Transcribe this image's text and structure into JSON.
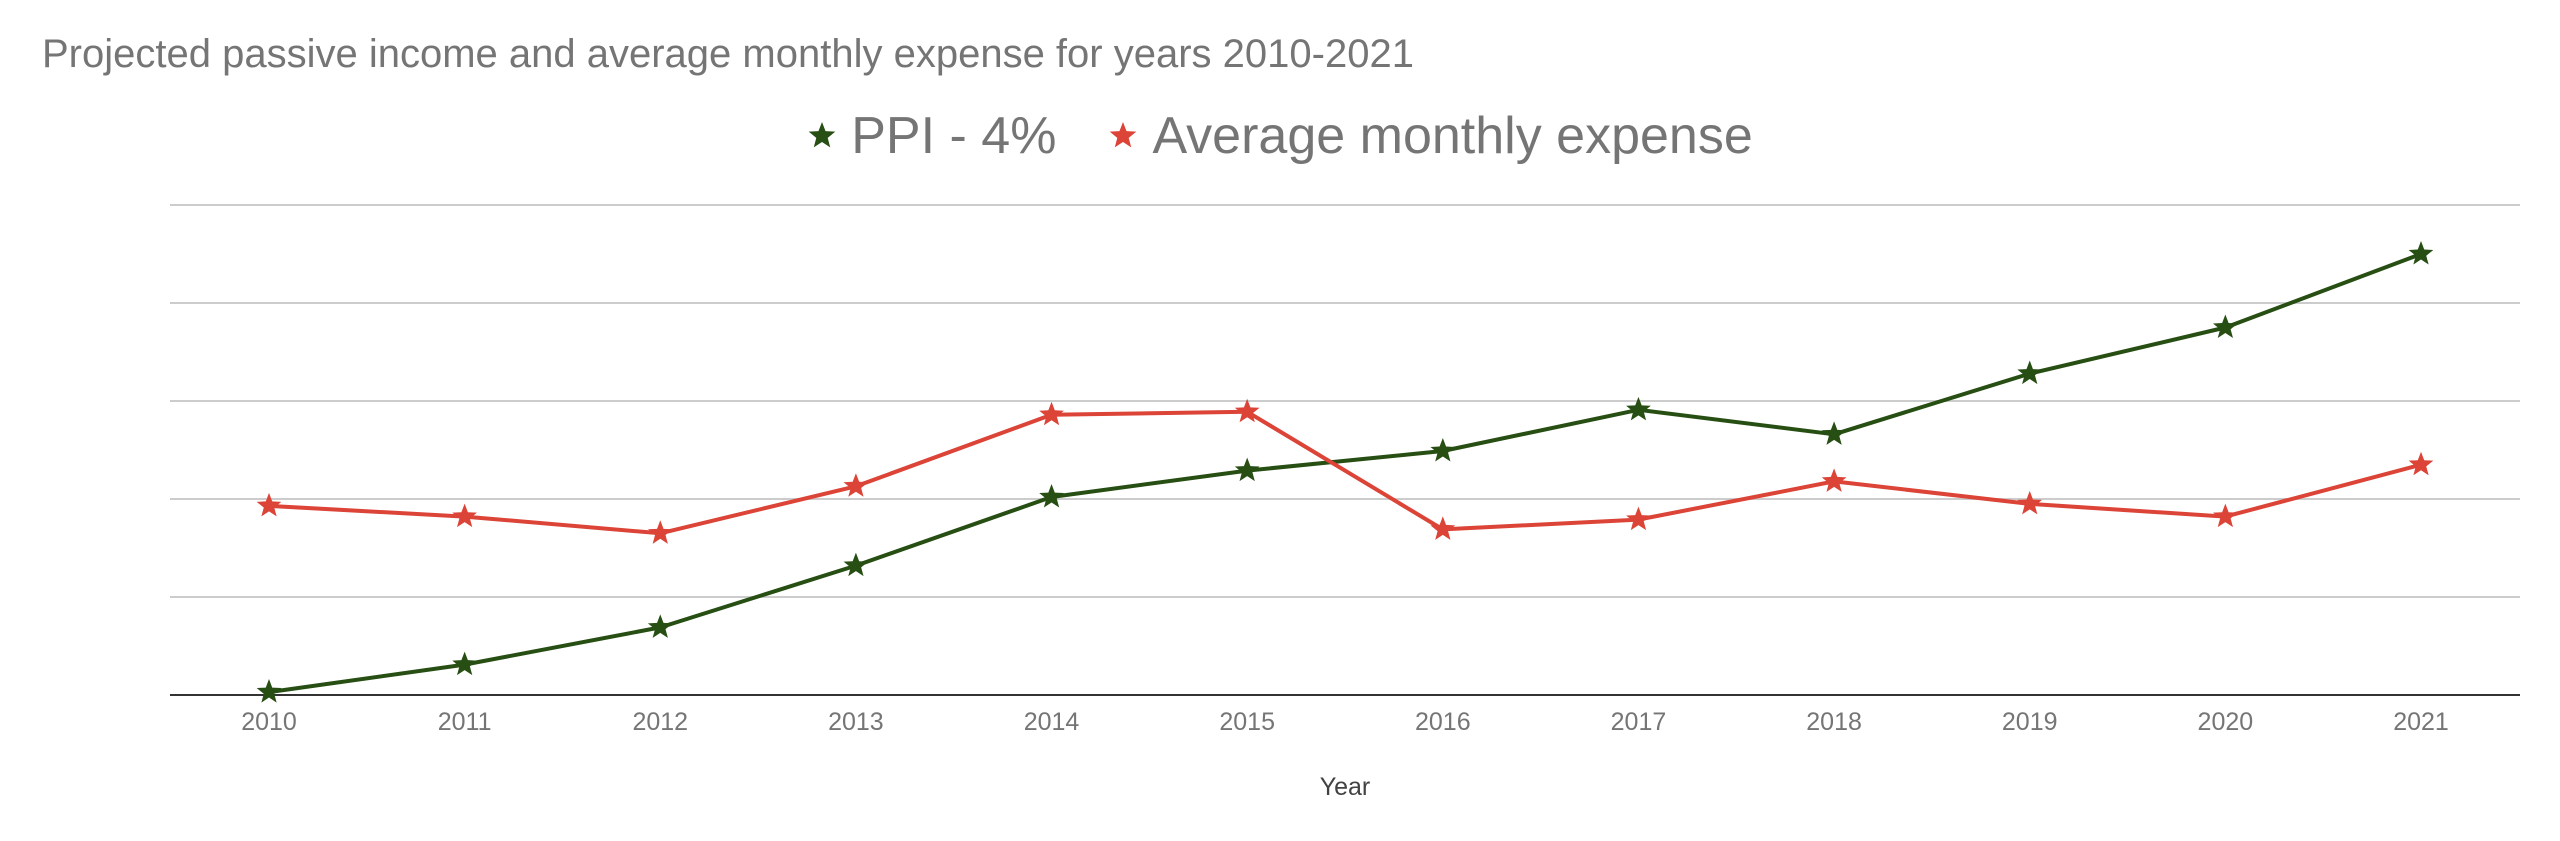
{
  "chart_data": {
    "type": "line",
    "title": "Projected passive income and average monthly expense for years 2010-2021",
    "xlabel": "Year",
    "ylabel": "",
    "ylim": [
      0,
      5
    ],
    "y_gridlines": 5,
    "y_tick_labels_shown": false,
    "grid": true,
    "legend_position": "top",
    "marker": "star",
    "categories": [
      "2010",
      "2011",
      "2012",
      "2013",
      "2014",
      "2015",
      "2016",
      "2017",
      "2018",
      "2019",
      "2020",
      "2021"
    ],
    "series": [
      {
        "name": "PPI - 4%",
        "color": "#274e13",
        "values": [
          0.03,
          0.31,
          0.69,
          1.32,
          2.02,
          2.29,
          2.49,
          2.91,
          2.66,
          3.28,
          3.75,
          4.5
        ]
      },
      {
        "name": "Average monthly expense",
        "color": "#db4437",
        "values": [
          1.93,
          1.82,
          1.65,
          2.13,
          2.86,
          2.89,
          1.69,
          1.79,
          2.18,
          1.95,
          1.82,
          2.35
        ]
      }
    ]
  }
}
